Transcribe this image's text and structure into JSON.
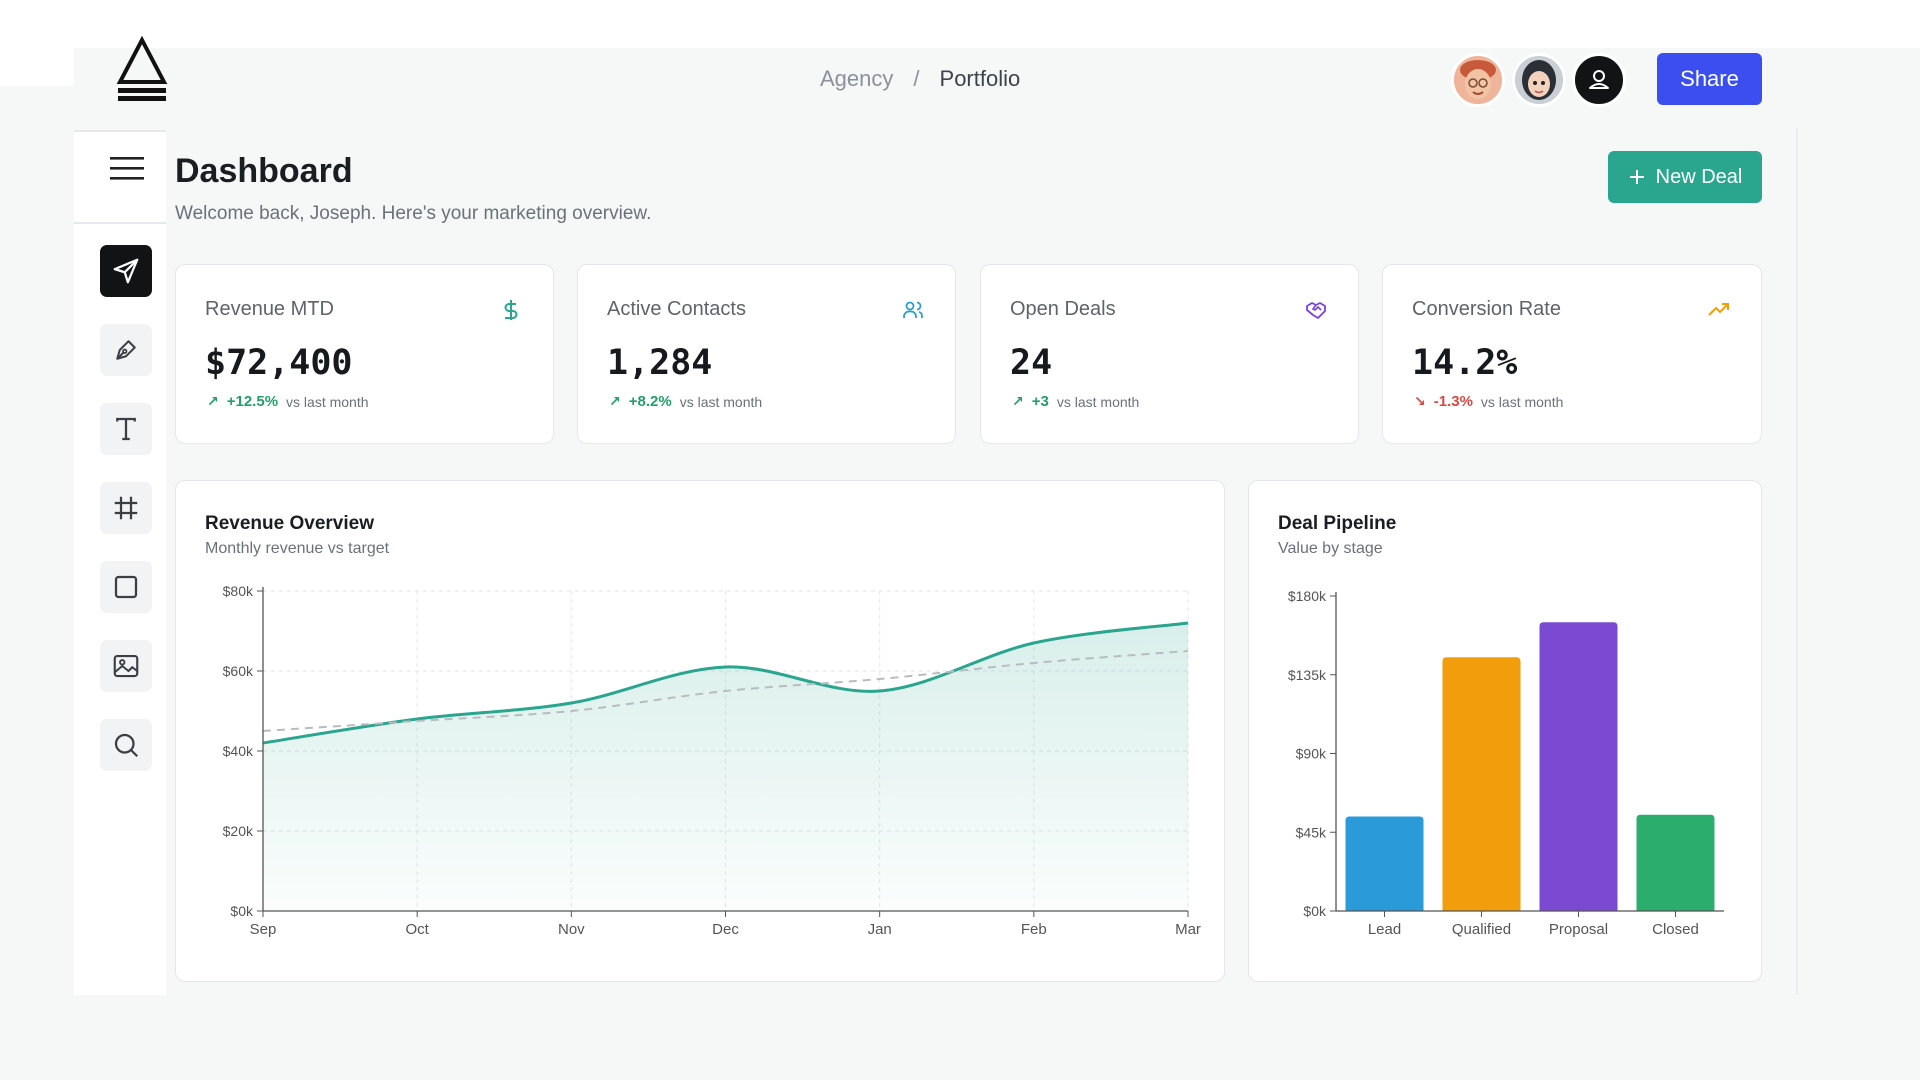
{
  "header": {
    "breadcrumb": [
      "Agency",
      "/",
      "Portfolio"
    ],
    "share_label": "Share"
  },
  "sidebar": {
    "tools": [
      {
        "icon": "send-icon",
        "active": true
      },
      {
        "icon": "pen-icon",
        "active": false
      },
      {
        "icon": "text-icon",
        "active": false
      },
      {
        "icon": "frame-icon",
        "active": false
      },
      {
        "icon": "rectangle-icon",
        "active": false
      },
      {
        "icon": "image-icon",
        "active": false
      },
      {
        "icon": "search-icon",
        "active": false
      }
    ]
  },
  "page": {
    "title": "Dashboard",
    "subtitle": "Welcome back, Joseph. Here's your marketing overview.",
    "new_deal_label": "New Deal"
  },
  "stats": [
    {
      "label": "Revenue MTD",
      "value": "$72,400",
      "change": "+12.5%",
      "direction": "up",
      "note": "vs last month",
      "icon": "dollar-icon",
      "icon_color": "#2aa58e"
    },
    {
      "label": "Active Contacts",
      "value": "1,284",
      "change": "+8.2%",
      "direction": "up",
      "note": "vs last month",
      "icon": "users-icon",
      "icon_color": "#2aa0c8"
    },
    {
      "label": "Open Deals",
      "value": "24",
      "change": "+3",
      "direction": "up",
      "note": "vs last month",
      "icon": "handshake-icon",
      "icon_color": "#7b3fe4"
    },
    {
      "label": "Conversion Rate",
      "value": "14.2%",
      "change": "-1.3%",
      "direction": "down",
      "note": "vs last month",
      "icon": "trending-up-icon",
      "icon_color": "#f29e0c"
    }
  ],
  "revenue_panel": {
    "title": "Revenue Overview",
    "subtitle": "Monthly revenue vs target"
  },
  "pipeline_panel": {
    "title": "Deal Pipeline",
    "subtitle": "Value by stage"
  },
  "chart_data": [
    {
      "type": "line",
      "title": "Revenue Overview",
      "subtitle": "Monthly revenue vs target",
      "x": [
        "Sep",
        "Oct",
        "Nov",
        "Dec",
        "Jan",
        "Feb",
        "Mar"
      ],
      "ylim": [
        0,
        80000
      ],
      "yticks": [
        "$0k",
        "$20k",
        "$40k",
        "$60k",
        "$80k"
      ],
      "grid": true,
      "series": [
        {
          "values": [
            42000,
            48000,
            52000,
            61000,
            55000,
            67000,
            72000
          ],
          "color": "#2aa58e",
          "style": "solid",
          "area": true
        },
        {
          "values": [
            45000,
            47500,
            50000,
            55000,
            58000,
            62000,
            65000
          ],
          "color": "#b8bcc0",
          "style": "dashed"
        }
      ]
    },
    {
      "type": "bar",
      "title": "Deal Pipeline",
      "subtitle": "Value by stage",
      "categories": [
        "Lead",
        "Qualified",
        "Proposal",
        "Closed"
      ],
      "values": [
        54000,
        145000,
        165000,
        55000
      ],
      "colors": [
        "#2a9ad9",
        "#f29e0c",
        "#7b4ad3",
        "#2aad6d"
      ],
      "ylim": [
        0,
        180000
      ],
      "yticks": [
        "$0k",
        "$45k",
        "$90k",
        "$135k",
        "$180k"
      ]
    }
  ]
}
